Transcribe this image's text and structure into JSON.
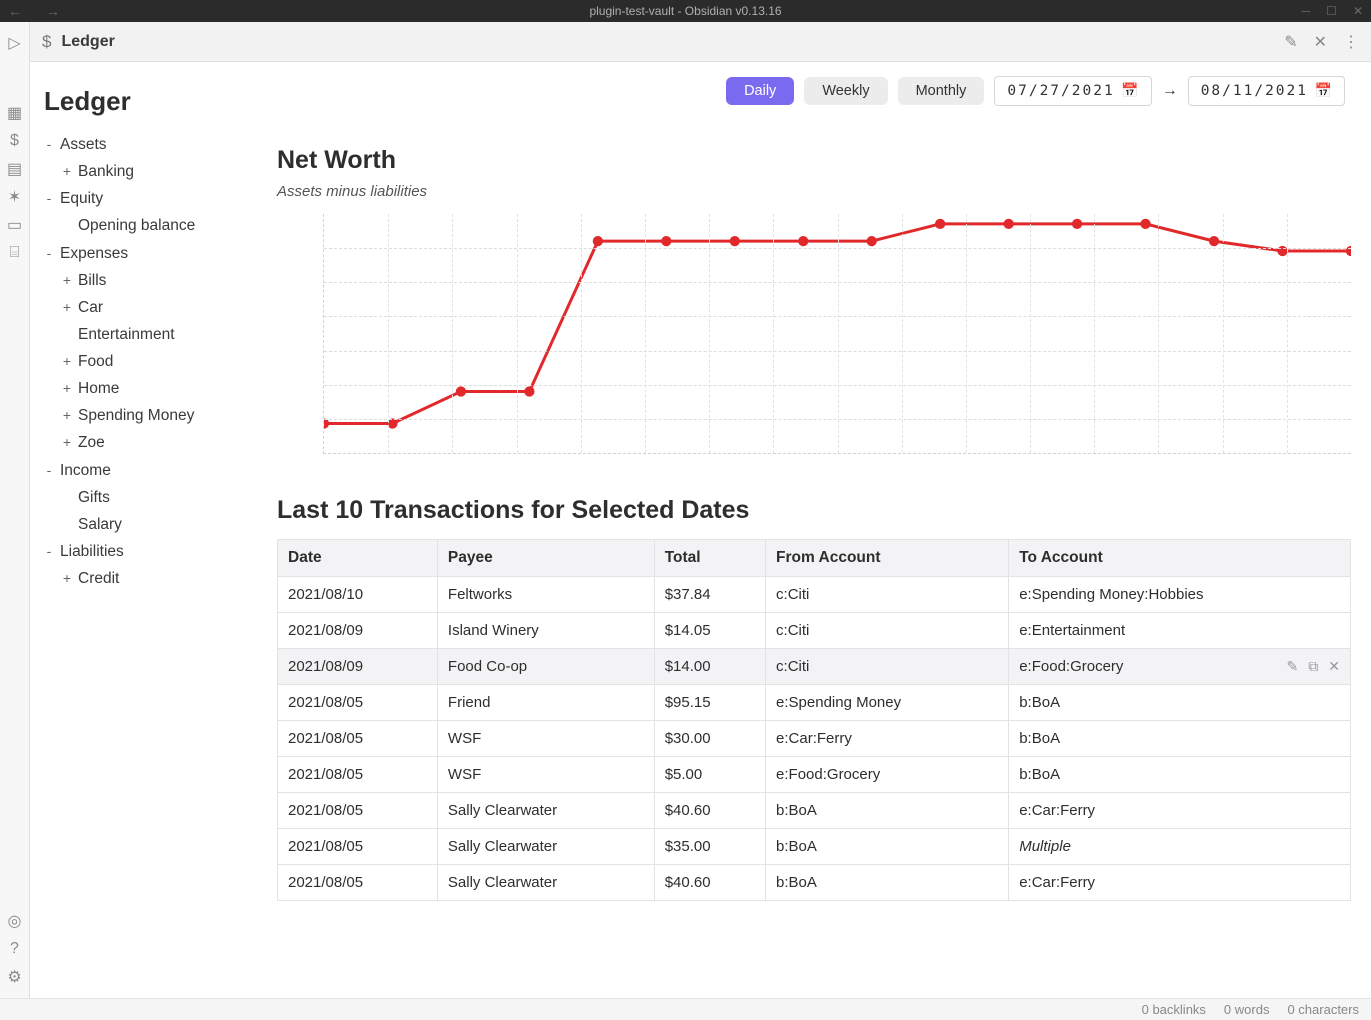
{
  "window": {
    "title": "plugin-test-vault - Obsidian v0.13.16"
  },
  "tab": {
    "title": "Ledger"
  },
  "sidebar": {
    "heading": "Ledger",
    "tree": [
      {
        "label": "Assets",
        "expand": "-",
        "children": [
          {
            "label": "Banking",
            "expand": "+"
          }
        ]
      },
      {
        "label": "Equity",
        "expand": "-",
        "children": [
          {
            "label": "Opening balance",
            "expand": ""
          }
        ]
      },
      {
        "label": "Expenses",
        "expand": "-",
        "children": [
          {
            "label": "Bills",
            "expand": "+"
          },
          {
            "label": "Car",
            "expand": "+"
          },
          {
            "label": "Entertainment",
            "expand": ""
          },
          {
            "label": "Food",
            "expand": "+"
          },
          {
            "label": "Home",
            "expand": "+"
          },
          {
            "label": "Spending Money",
            "expand": "+"
          },
          {
            "label": "Zoe",
            "expand": "+"
          }
        ]
      },
      {
        "label": "Income",
        "expand": "-",
        "children": [
          {
            "label": "Gifts",
            "expand": ""
          },
          {
            "label": "Salary",
            "expand": ""
          }
        ]
      },
      {
        "label": "Liabilities",
        "expand": "-",
        "children": [
          {
            "label": "Credit",
            "expand": "+"
          }
        ]
      }
    ]
  },
  "controls": {
    "segments": [
      "Daily",
      "Weekly",
      "Monthly"
    ],
    "active_segment": 0,
    "date_from": "07/27/2021",
    "date_to": "08/11/2021"
  },
  "networth": {
    "title": "Net Worth",
    "subtitle": "Assets minus liabilities",
    "chart": {
      "type": "line",
      "line_color": "#e1292c",
      "marker_color": "#e1292c",
      "line_width": 3,
      "marker_radius": 5,
      "background_color": "#ffffff",
      "grid_color": "#dcdcdc",
      "h_gridlines": 7,
      "v_gridlines": 16,
      "ylim": [
        0,
        100
      ],
      "points": [
        {
          "x": 0,
          "y": 15
        },
        {
          "x": 1,
          "y": 15
        },
        {
          "x": 2,
          "y": 28
        },
        {
          "x": 3,
          "y": 28
        },
        {
          "x": 4,
          "y": 89
        },
        {
          "x": 5,
          "y": 89
        },
        {
          "x": 6,
          "y": 89
        },
        {
          "x": 7,
          "y": 89
        },
        {
          "x": 8,
          "y": 89
        },
        {
          "x": 9,
          "y": 96
        },
        {
          "x": 10,
          "y": 96
        },
        {
          "x": 11,
          "y": 96
        },
        {
          "x": 12,
          "y": 96
        },
        {
          "x": 13,
          "y": 89
        },
        {
          "x": 14,
          "y": 85
        },
        {
          "x": 15,
          "y": 85
        }
      ]
    }
  },
  "transactions": {
    "title": "Last 10 Transactions for Selected Dates",
    "columns": [
      "Date",
      "Payee",
      "Total",
      "From Account",
      "To Account"
    ],
    "rows": [
      [
        "2021/08/10",
        "Feltworks",
        "$37.84",
        "c:Citi",
        "e:Spending Money:Hobbies"
      ],
      [
        "2021/08/09",
        "Island Winery",
        "$14.05",
        "c:Citi",
        "e:Entertainment"
      ],
      [
        "2021/08/09",
        "Food Co-op",
        "$14.00",
        "c:Citi",
        "e:Food:Grocery"
      ],
      [
        "2021/08/05",
        "Friend",
        "$95.15",
        "e:Spending Money",
        "b:BoA"
      ],
      [
        "2021/08/05",
        "WSF",
        "$30.00",
        "e:Car:Ferry",
        "b:BoA"
      ],
      [
        "2021/08/05",
        "WSF",
        "$5.00",
        "e:Food:Grocery",
        "b:BoA"
      ],
      [
        "2021/08/05",
        "Sally Clearwater",
        "$40.60",
        "b:BoA",
        "e:Car:Ferry"
      ],
      [
        "2021/08/05",
        "Sally Clearwater",
        "$35.00",
        "b:BoA",
        "Multiple"
      ],
      [
        "2021/08/05",
        "Sally Clearwater",
        "$40.60",
        "b:BoA",
        "e:Car:Ferry"
      ]
    ],
    "hover_row_index": 2
  },
  "statusbar": {
    "backlinks": "0 backlinks",
    "words": "0 words",
    "chars": "0 characters"
  }
}
